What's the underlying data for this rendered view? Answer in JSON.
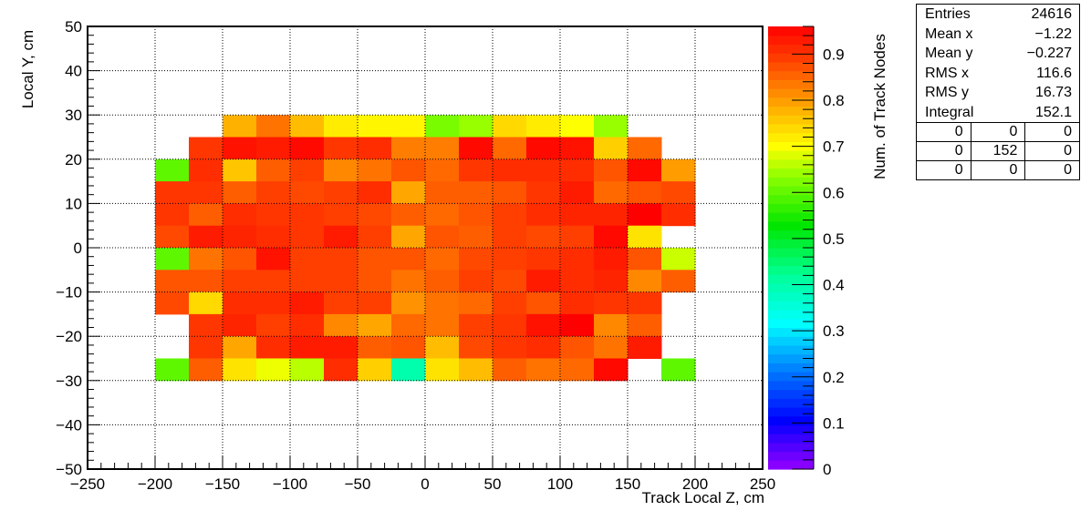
{
  "chart_data": {
    "type": "heatmap",
    "xlabel": "Track Local Z, cm",
    "ylabel": "Local Y, cm",
    "zlabel": "Num. of Track Nodes",
    "xlim": [
      -250,
      250
    ],
    "ylim": [
      -50,
      50
    ],
    "zlim": [
      0,
      0.96
    ],
    "x_ticks": [
      -250,
      -200,
      -150,
      -100,
      -50,
      0,
      50,
      100,
      150,
      200,
      250
    ],
    "x_tick_labels": [
      "−250",
      "−200",
      "−150",
      "−100",
      "−50",
      "0",
      "50",
      "100",
      "150",
      "200",
      "250"
    ],
    "y_ticks": [
      -50,
      -40,
      -30,
      -20,
      -10,
      0,
      10,
      20,
      30,
      40,
      50
    ],
    "y_tick_labels": [
      "−50",
      "−40",
      "−30",
      "−20",
      "−10",
      "0",
      "10",
      "20",
      "30",
      "40",
      "50"
    ],
    "z_ticks": [
      0,
      0.1,
      0.2,
      0.3,
      0.4,
      0.5,
      0.6,
      0.7,
      0.8,
      0.9
    ],
    "z_tick_labels": [
      "0",
      "0.1",
      "0.2",
      "0.3",
      "0.4",
      "0.5",
      "0.6",
      "0.7",
      "0.8",
      "0.9"
    ],
    "grid": true,
    "x_bin_edges": [
      -200,
      -175,
      -150,
      -125,
      -100,
      -75,
      -50,
      -25,
      0,
      25,
      50,
      75,
      100,
      125,
      150,
      175,
      200
    ],
    "y_bin_edges": [
      -30,
      -25,
      -20,
      -15,
      -10,
      -5,
      0,
      5,
      10,
      15,
      20,
      25,
      30
    ],
    "rows_from_top": [
      [
        null,
        null,
        0.78,
        0.84,
        0.77,
        0.72,
        0.71,
        0.71,
        0.62,
        0.64,
        0.74,
        0.72,
        0.7,
        0.64,
        null,
        null
      ],
      [
        null,
        0.9,
        0.94,
        0.93,
        0.95,
        0.9,
        0.91,
        0.83,
        0.83,
        0.95,
        0.85,
        0.95,
        0.94,
        0.75,
        0.85,
        null
      ],
      [
        0.6,
        0.91,
        0.76,
        0.86,
        0.89,
        0.82,
        0.84,
        0.87,
        0.85,
        0.9,
        0.91,
        0.91,
        0.91,
        0.87,
        0.95,
        0.8
      ],
      [
        0.9,
        0.9,
        0.86,
        0.89,
        0.88,
        0.89,
        0.91,
        0.79,
        0.86,
        0.86,
        0.87,
        0.9,
        0.93,
        0.85,
        0.87,
        0.88
      ],
      [
        0.9,
        0.86,
        0.91,
        0.9,
        0.9,
        0.89,
        0.88,
        0.86,
        0.85,
        0.87,
        0.89,
        0.91,
        0.92,
        0.92,
        0.96,
        0.91
      ],
      [
        0.88,
        0.93,
        0.92,
        0.91,
        0.9,
        0.93,
        0.89,
        0.79,
        0.87,
        0.86,
        0.89,
        0.88,
        0.89,
        0.95,
        0.73,
        null
      ],
      [
        0.6,
        0.84,
        0.87,
        0.94,
        0.89,
        0.89,
        0.87,
        0.87,
        0.85,
        0.88,
        0.89,
        0.9,
        0.91,
        0.93,
        0.87,
        0.67
      ],
      [
        0.87,
        0.87,
        0.89,
        0.89,
        0.89,
        0.89,
        0.87,
        0.84,
        0.86,
        0.89,
        0.88,
        0.93,
        0.91,
        0.92,
        0.82,
        0.86
      ],
      [
        0.88,
        0.74,
        0.91,
        0.91,
        0.93,
        0.89,
        0.89,
        0.81,
        0.84,
        0.85,
        0.89,
        0.87,
        0.91,
        0.9,
        0.9,
        null
      ],
      [
        null,
        0.9,
        0.92,
        0.89,
        0.91,
        0.82,
        0.79,
        0.85,
        0.84,
        0.89,
        0.9,
        0.94,
        0.96,
        0.82,
        0.86,
        null
      ],
      [
        null,
        0.9,
        0.79,
        0.91,
        0.93,
        0.93,
        0.86,
        0.87,
        0.77,
        0.88,
        0.9,
        0.91,
        0.87,
        0.84,
        0.93,
        null
      ],
      [
        0.6,
        0.86,
        0.73,
        0.69,
        0.66,
        0.91,
        0.75,
        0.4,
        0.73,
        0.77,
        0.86,
        0.84,
        0.85,
        0.95,
        null,
        0.6
      ]
    ]
  },
  "stats": {
    "rows": [
      {
        "label": "Entries",
        "value": "24616"
      },
      {
        "label": "Mean x",
        "value": "−1.22"
      },
      {
        "label": "Mean y",
        "value": "−0.227"
      },
      {
        "label": "RMS x",
        "value": "116.6"
      },
      {
        "label": "RMS y",
        "value": "16.73"
      },
      {
        "label": "Integral",
        "value": "152.1"
      }
    ],
    "grid": [
      [
        "0",
        "0",
        "0"
      ],
      [
        "0",
        "152",
        "0"
      ],
      [
        "0",
        "0",
        "0"
      ]
    ]
  }
}
